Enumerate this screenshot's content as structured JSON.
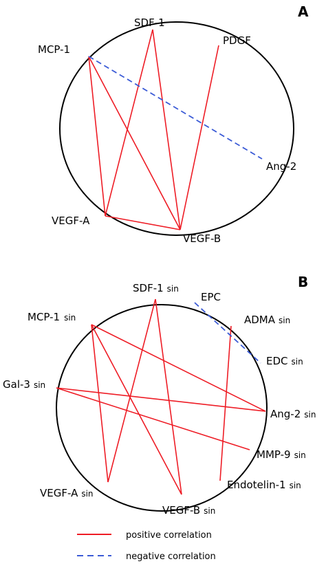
{
  "panels": [
    {
      "letter": "A",
      "nodes": [
        {
          "id": "sdf1",
          "label": "SDF-1",
          "sub": ""
        },
        {
          "id": "pdgf",
          "label": "PDGF",
          "sub": ""
        },
        {
          "id": "mcp1",
          "label": "MCP-1",
          "sub": ""
        },
        {
          "id": "ang2",
          "label": "Ang-2",
          "sub": ""
        },
        {
          "id": "vegfa",
          "label": "VEGF-A",
          "sub": ""
        },
        {
          "id": "vegfb",
          "label": "VEGF-B",
          "sub": ""
        }
      ],
      "edges": [
        {
          "from": "mcp1",
          "to": "vegfa",
          "type": "positive"
        },
        {
          "from": "mcp1",
          "to": "vegfb",
          "type": "positive"
        },
        {
          "from": "sdf1",
          "to": "vegfa",
          "type": "positive"
        },
        {
          "from": "sdf1",
          "to": "vegfb",
          "type": "positive"
        },
        {
          "from": "pdgf",
          "to": "vegfb",
          "type": "positive"
        },
        {
          "from": "vegfa",
          "to": "vegfb",
          "type": "positive"
        },
        {
          "from": "mcp1",
          "to": "ang2",
          "type": "negative"
        }
      ]
    },
    {
      "letter": "B",
      "nodes": [
        {
          "id": "sdf1",
          "label": "SDF-1",
          "sub": "sin"
        },
        {
          "id": "epc",
          "label": "EPC",
          "sub": ""
        },
        {
          "id": "adma",
          "label": "ADMA",
          "sub": "sin"
        },
        {
          "id": "mcp1",
          "label": "MCP-1",
          "sub": "sin"
        },
        {
          "id": "edc",
          "label": "EDC",
          "sub": "sin"
        },
        {
          "id": "gal3",
          "label": "Gal-3",
          "sub": "sin"
        },
        {
          "id": "ang2",
          "label": "Ang-2",
          "sub": "sin"
        },
        {
          "id": "mmp9",
          "label": "MMP-9",
          "sub": "sin"
        },
        {
          "id": "endo1",
          "label": "Endotelin-1",
          "sub": "sin"
        },
        {
          "id": "vegfa",
          "label": "VEGF-A",
          "sub": "sin"
        },
        {
          "id": "vegfb",
          "label": "VEGF-B",
          "sub": "sin"
        }
      ],
      "edges": [
        {
          "from": "sdf1",
          "to": "vegfa",
          "type": "positive"
        },
        {
          "from": "sdf1",
          "to": "vegfb",
          "type": "positive"
        },
        {
          "from": "mcp1",
          "to": "vegfa",
          "type": "positive"
        },
        {
          "from": "mcp1",
          "to": "vegfb",
          "type": "positive"
        },
        {
          "from": "mcp1",
          "to": "ang2",
          "type": "positive"
        },
        {
          "from": "gal3",
          "to": "ang2",
          "type": "positive"
        },
        {
          "from": "gal3",
          "to": "mmp9",
          "type": "positive"
        },
        {
          "from": "adma",
          "to": "endo1",
          "type": "positive"
        },
        {
          "from": "epc",
          "to": "edc",
          "type": "negative"
        }
      ]
    }
  ],
  "legend": {
    "positive_label": "positive correlation",
    "negative_label": "negative correlation"
  },
  "colors": {
    "positive": "#ee1c25",
    "negative": "#3b5bd6",
    "circle": "#000000"
  }
}
